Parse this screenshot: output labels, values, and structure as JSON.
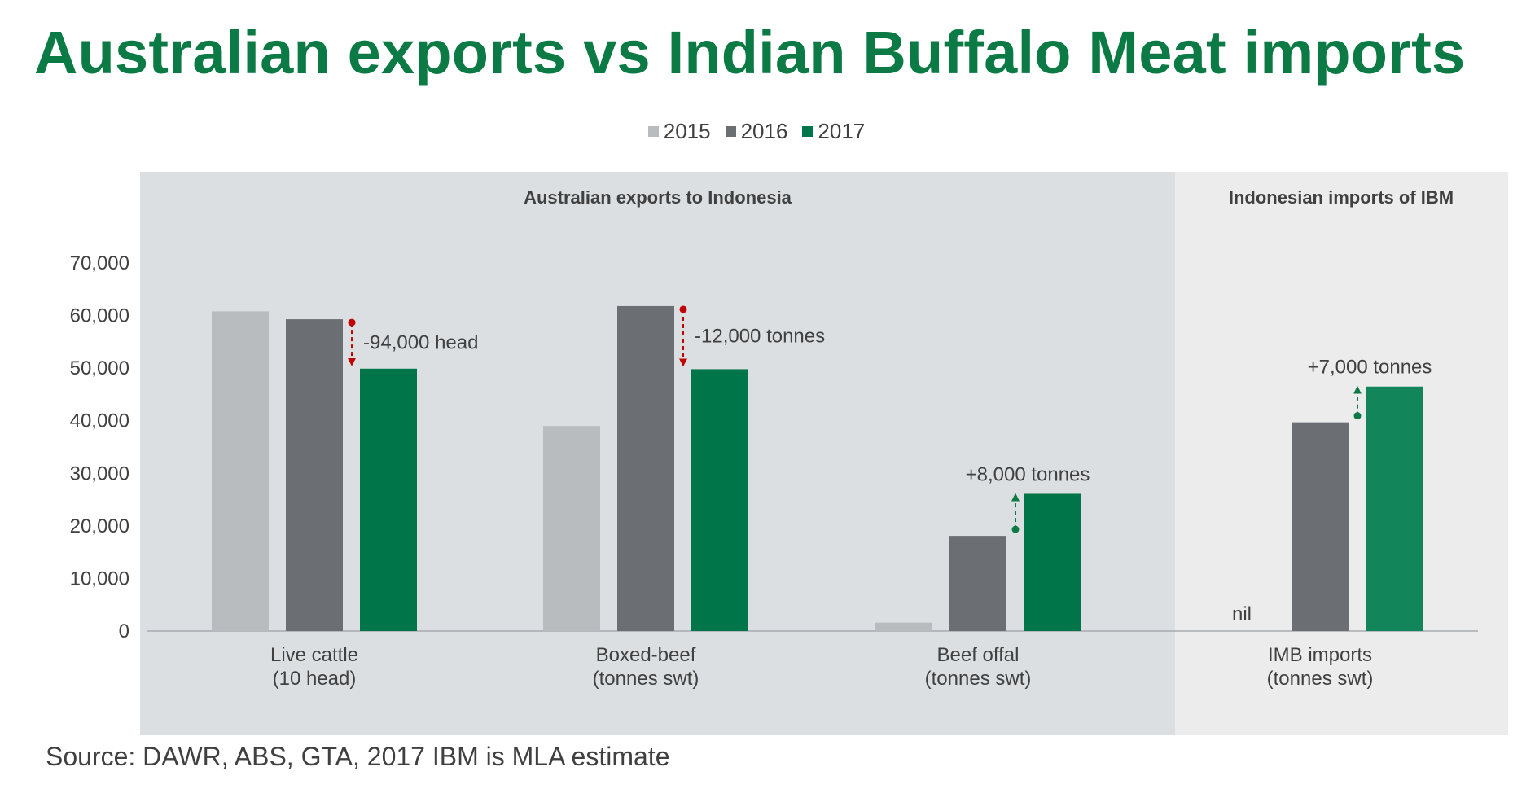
{
  "title": "Australian exports vs Indian Buffalo Meat imports",
  "source": "Source: DAWR, ABS, GTA, 2017 IBM is MLA estimate",
  "colors": {
    "title": "#0b7a45",
    "panel_left_bg": "#dbdfe2",
    "panel_right_bg": "#ececed",
    "bar_2015": "#b8bcbf",
    "bar_2016": "#6b6f73",
    "bar_2017": "#007549",
    "bar_2017_ibm": "#13855a",
    "decrease_arrow": "#c00000",
    "increase_arrow": "#0b7a45"
  },
  "chart_data": {
    "type": "bar",
    "ylim": [
      0,
      70000
    ],
    "yticks": [
      "0",
      "10,000",
      "20,000",
      "30,000",
      "40,000",
      "50,000",
      "60,000",
      "70,000"
    ],
    "ytick_values": [
      0,
      10000,
      20000,
      30000,
      40000,
      50000,
      60000,
      70000
    ],
    "grid": false,
    "legend_position": "top-center",
    "legend": [
      "2015",
      "2016",
      "2017"
    ],
    "panels": [
      {
        "title": "Australian exports to Indonesia"
      },
      {
        "title": "Indonesian imports of IBM"
      }
    ],
    "categories": [
      {
        "line1": "Live cattle",
        "line2": "(10 head)"
      },
      {
        "line1": "Boxed-beef",
        "line2": "(tonnes swt)"
      },
      {
        "line1": "Beef offal",
        "line2": "(tonnes swt)"
      },
      {
        "line1": "IMB imports",
        "line2": "(tonnes swt)"
      }
    ],
    "series": [
      {
        "name": "2015",
        "values": [
          60800,
          39000,
          1600,
          null
        ]
      },
      {
        "name": "2016",
        "values": [
          59300,
          61800,
          18100,
          39700
        ]
      },
      {
        "name": "2017",
        "values": [
          49900,
          49800,
          26100,
          46500
        ]
      }
    ],
    "nil_label": "nil",
    "annotations": [
      {
        "category_index": 0,
        "direction": "down",
        "text": "-94,000 head"
      },
      {
        "category_index": 1,
        "direction": "down",
        "text": "-12,000 tonnes"
      },
      {
        "category_index": 2,
        "direction": "up",
        "text": "+8,000 tonnes"
      },
      {
        "category_index": 3,
        "direction": "up",
        "text": "+7,000 tonnes"
      }
    ]
  }
}
